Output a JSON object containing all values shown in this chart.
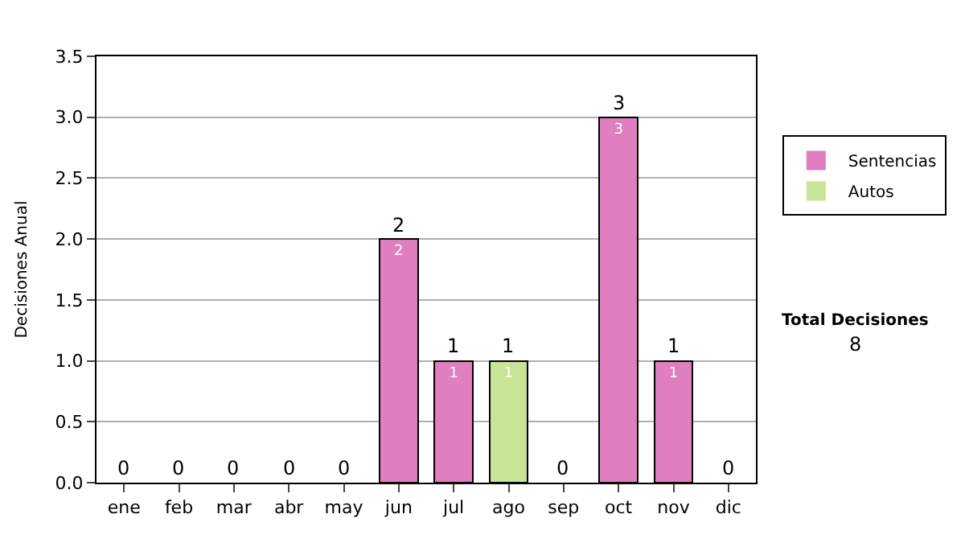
{
  "chart_data": {
    "type": "bar",
    "stacked": true,
    "ylabel": "Decisiones Anual",
    "categories": [
      "ene",
      "feb",
      "mar",
      "abr",
      "may",
      "jun",
      "jul",
      "ago",
      "sep",
      "oct",
      "nov",
      "dic"
    ],
    "series": [
      {
        "name": "Sentencias",
        "color": "#e07fc0",
        "values": [
          0,
          0,
          0,
          0,
          0,
          2,
          1,
          0,
          0,
          3,
          1,
          0
        ],
        "value_labels": [
          null,
          null,
          null,
          null,
          null,
          "2",
          "1",
          null,
          null,
          "3",
          "1",
          null
        ]
      },
      {
        "name": "Autos",
        "color": "#c8e496",
        "values": [
          0,
          0,
          0,
          0,
          0,
          0,
          0,
          1,
          0,
          0,
          0,
          0
        ],
        "value_labels": [
          null,
          null,
          null,
          null,
          null,
          null,
          null,
          "1",
          null,
          null,
          null,
          null
        ]
      }
    ],
    "totals": [
      "0",
      "0",
      "0",
      "0",
      "0",
      "2",
      "1",
      "1",
      "0",
      "3",
      "1",
      "0"
    ],
    "ylim": [
      0,
      3.5
    ],
    "yticks": [
      {
        "value": 0,
        "label": "0.0"
      },
      {
        "value": 0.5,
        "label": "0.5"
      },
      {
        "value": 1,
        "label": "1.0"
      },
      {
        "value": 1.5,
        "label": "1.5"
      },
      {
        "value": 2,
        "label": "2.0"
      },
      {
        "value": 2.5,
        "label": "2.5"
      },
      {
        "value": 3,
        "label": "3.0"
      },
      {
        "value": 3.5,
        "label": "3.5"
      }
    ],
    "grid": "y",
    "legend": "right",
    "annotations": [
      "Total Decisiones",
      "8"
    ]
  }
}
